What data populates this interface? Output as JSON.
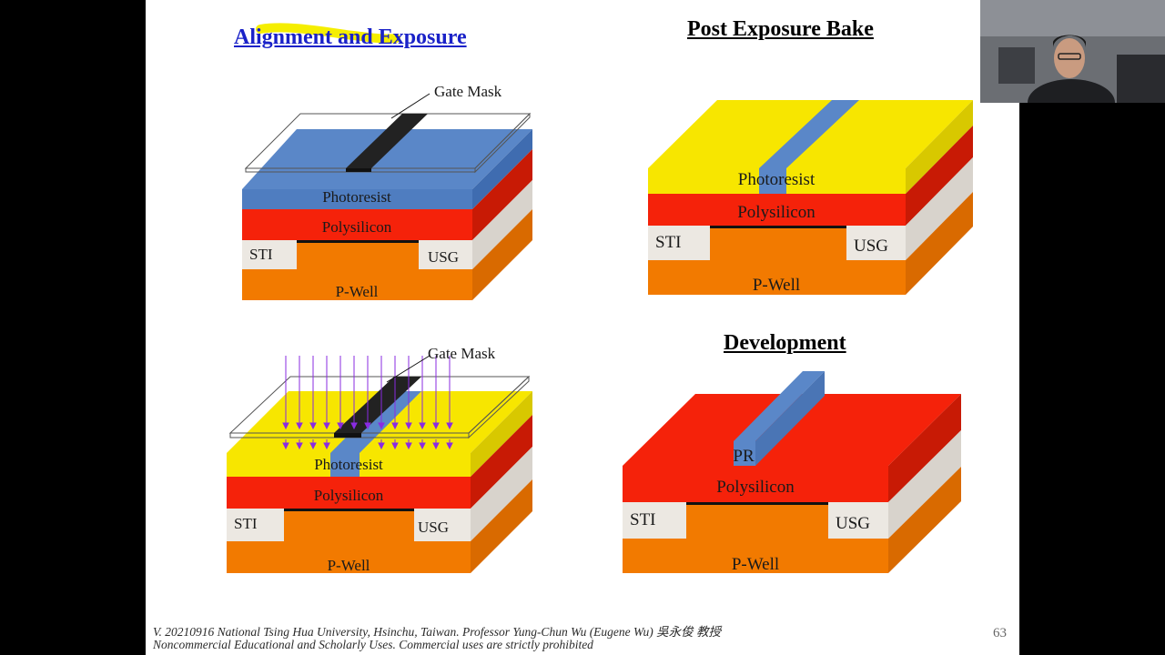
{
  "slide": {
    "titles": {
      "alignment": "Alignment and Exposure",
      "post_exposure": "Post Exposure Bake",
      "development": "Development"
    },
    "labels": {
      "gate_mask": "Gate Mask",
      "photoresist": "Photoresist",
      "polysilicon": "Polysilicon",
      "sti": "STI",
      "usg": "USG",
      "pwell": "P-Well",
      "pr": "PR"
    },
    "footer_line1": "V. 20210916 National Tsing Hua University, Hsinchu, Taiwan. Professor Yung-Chun Wu (Eugene Wu) 吳永俊 教授",
    "footer_line2": "Noncommercial Educational and Scholarly Uses. Commercial uses are strictly prohibited",
    "page_number": "63"
  },
  "colors": {
    "photoresist_blue": "#5a87c8",
    "exposed_yellow": "#f7e600",
    "polysilicon_red": "#f5220a",
    "pwell_orange": "#f27a00",
    "oxide_white": "#ece8e2",
    "title_blue": "#1a22c8",
    "highlight_yellow": "#f5ee00",
    "uv_purple": "#8a2be2"
  },
  "webcam": {
    "icon": "presenter-video"
  }
}
